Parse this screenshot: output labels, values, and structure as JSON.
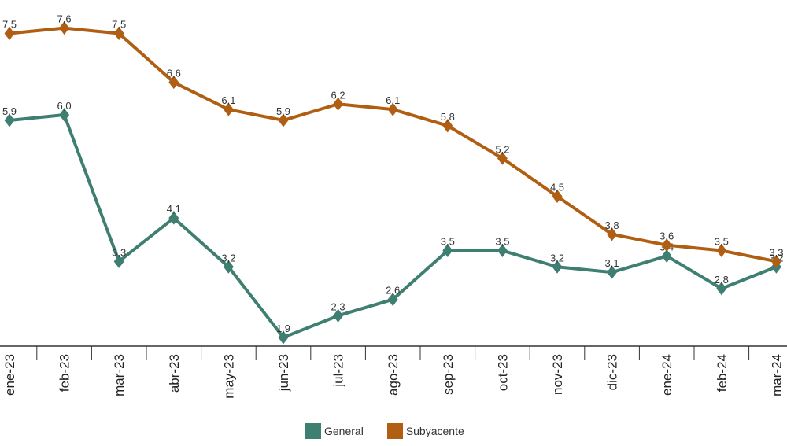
{
  "chart_data": {
    "type": "line",
    "categories": [
      "ene-23",
      "feb-23",
      "mar-23",
      "abr-23",
      "may-23",
      "jun-23",
      "jul-23",
      "ago-23",
      "sep-23",
      "oct-23",
      "nov-23",
      "dic-23",
      "ene-24",
      "feb-24",
      "mar-24"
    ],
    "series": [
      {
        "name": "General",
        "color": "#3f7f72",
        "values": [
          5.9,
          6.0,
          3.3,
          4.1,
          3.2,
          1.9,
          2.3,
          2.6,
          3.5,
          3.5,
          3.2,
          3.1,
          3.4,
          2.8,
          3.2
        ],
        "labels": [
          "5,9",
          "6,0",
          "3,3",
          "4,1",
          "3,2",
          "1,9",
          "2,3",
          "2,6",
          "3,5",
          "3,5",
          "3,2",
          "3,1",
          "3,4",
          "2,8",
          "3,2"
        ]
      },
      {
        "name": "Subyacente",
        "color": "#b05f12",
        "values": [
          7.5,
          7.6,
          7.5,
          6.6,
          6.1,
          5.9,
          6.2,
          6.1,
          5.8,
          5.2,
          4.5,
          3.8,
          3.6,
          3.5,
          3.3
        ],
        "labels": [
          "7,5",
          "7,6",
          "7,5",
          "6,6",
          "6,1",
          "5,9",
          "6,2",
          "6,1",
          "5,8",
          "5,2",
          "4,5",
          "3,8",
          "3,6",
          "3,5",
          "3,3"
        ]
      }
    ],
    "title": "",
    "xlabel": "",
    "ylabel": "",
    "ylim": [
      0,
      8
    ],
    "grid": false,
    "legend_position": "bottom"
  }
}
